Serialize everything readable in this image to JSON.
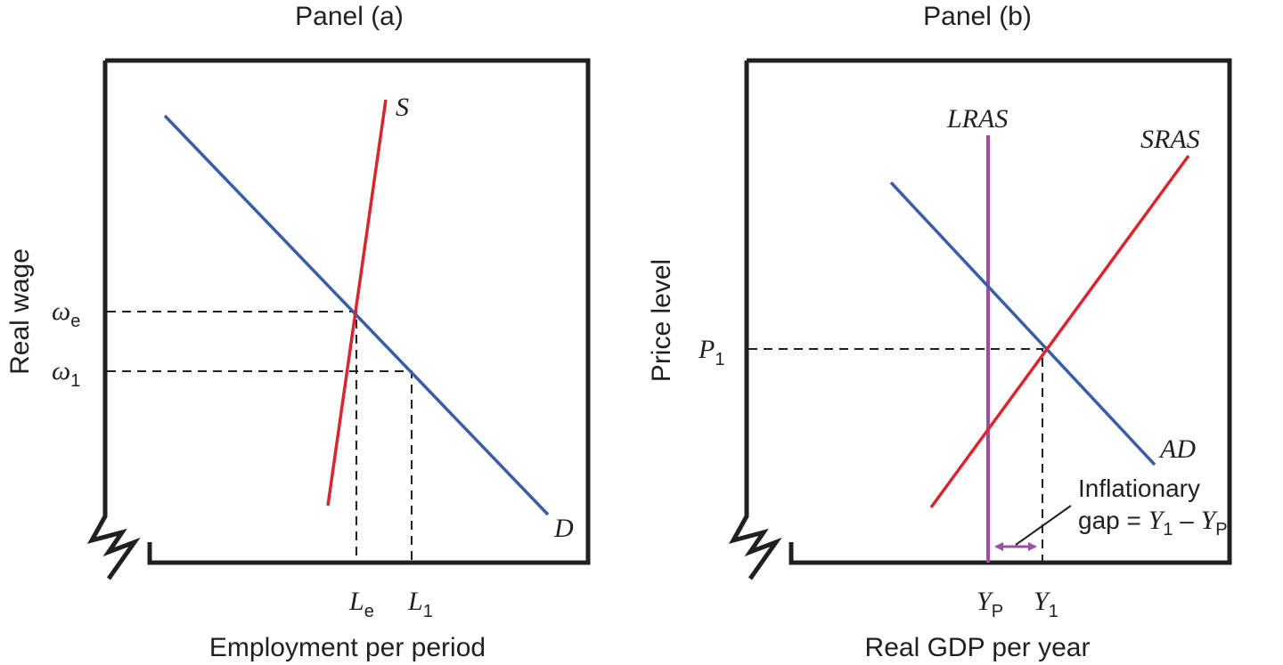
{
  "colors": {
    "demand": "#3a5da8",
    "supply": "#d7262e",
    "lras": "#9b4fa0",
    "axis": "#231f20"
  },
  "panel_a": {
    "title": "Panel (a)",
    "x_axis_label": "Employment per period",
    "y_axis_label": "Real wage",
    "curves": {
      "demand": "D",
      "supply": "S"
    },
    "y_ticks": [
      {
        "base": "ω",
        "sub": "e"
      },
      {
        "base": "ω",
        "sub": "1"
      }
    ],
    "x_ticks": [
      {
        "base": "L",
        "sub": "e"
      },
      {
        "base": "L",
        "sub": "1"
      }
    ]
  },
  "panel_b": {
    "title": "Panel (b)",
    "x_axis_label": "Real GDP per year",
    "y_axis_label": "Price level",
    "curves": {
      "lras": "LRAS",
      "sras": "SRAS",
      "ad": "AD"
    },
    "y_ticks": [
      {
        "base": "P",
        "sub": "1"
      }
    ],
    "x_ticks": [
      {
        "base": "Y",
        "sub": "P"
      },
      {
        "base": "Y",
        "sub": "1"
      }
    ],
    "annotation": {
      "line1": "Inflationary",
      "line2_prefix": "gap = ",
      "term1_base": "Y",
      "term1_sub": "1",
      "minus": " – ",
      "term2_base": "Y",
      "term2_sub": "P"
    }
  }
}
